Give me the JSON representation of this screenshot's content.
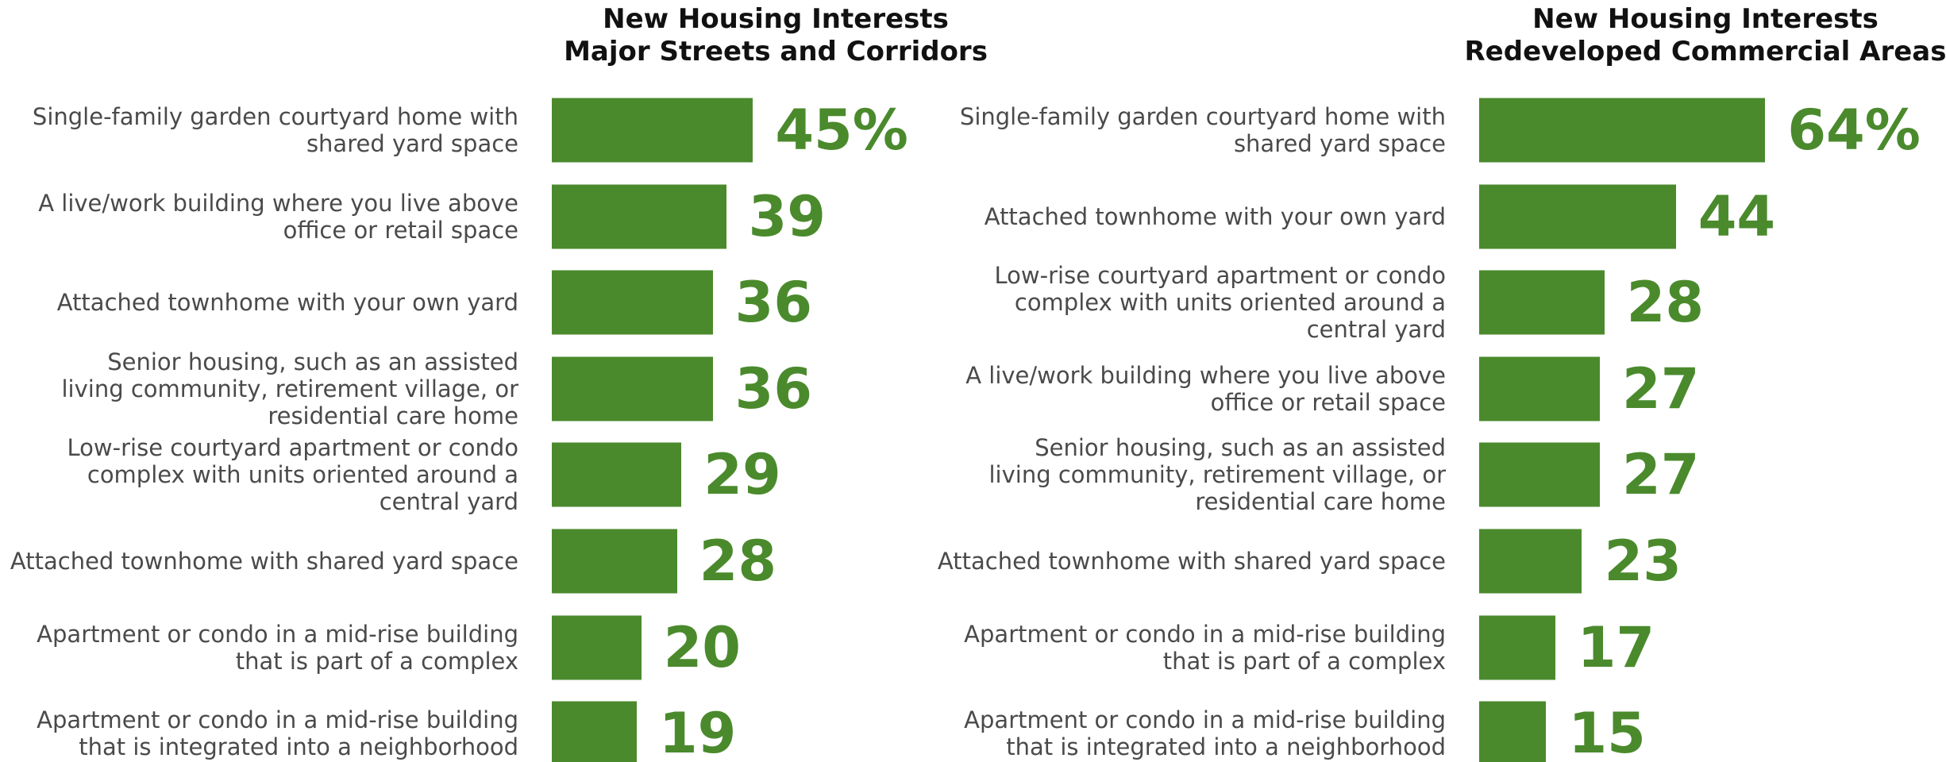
{
  "chart_data": [
    {
      "type": "bar",
      "orientation": "horizontal",
      "title": "New Housing Interests\nMajor Streets and Corridors",
      "color": "#4a8a2c",
      "categories": [
        "Single-family garden courtyard home with\nshared yard space",
        "A live/work building where you live above\noffice or retail space",
        "Attached townhome with your own yard",
        "Senior housing, such as an assisted\nliving community, retirement village, or\nresidential care home",
        "Low-rise courtyard apartment or condo\ncomplex with units oriented around a\ncentral yard",
        "Attached townhome with shared yard space",
        "Apartment or condo in a mid-rise building\nthat is part of a complex",
        "Apartment or condo in a mid-rise building\nthat is integrated into a neighborhood"
      ],
      "values": [
        45,
        39,
        36,
        36,
        29,
        28,
        20,
        19
      ],
      "value_labels": [
        "45%",
        "39",
        "36",
        "36",
        "29",
        "28",
        "20",
        "19"
      ]
    },
    {
      "type": "bar",
      "orientation": "horizontal",
      "title": "New Housing Interests\nRedeveloped Commercial Areas",
      "color": "#4a8a2c",
      "categories": [
        "Single-family garden courtyard home with\nshared yard space",
        "Attached townhome with your own yard",
        "Low-rise courtyard apartment or condo\ncomplex with units oriented around a\ncentral yard",
        "A live/work building where you live above\noffice or retail space",
        "Senior housing, such as an assisted\nliving community, retirement village, or\nresidential care home",
        "Attached townhome with shared yard space",
        "Apartment or condo in a mid-rise building\nthat is part of a complex",
        "Apartment or condo in a mid-rise building\nthat is integrated into a neighborhood"
      ],
      "values": [
        64,
        44,
        28,
        27,
        27,
        23,
        17,
        15
      ],
      "value_labels": [
        "64%",
        "44",
        "28",
        "27",
        "27",
        "23",
        "17",
        "15"
      ]
    }
  ]
}
